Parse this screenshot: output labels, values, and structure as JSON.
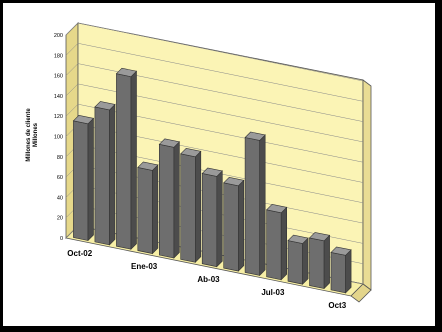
{
  "chart_data": {
    "type": "bar",
    "ylabel_line1": "Millones de cliente",
    "ylabel_line2": "Millones",
    "ylim": [
      0,
      200
    ],
    "yticks": [
      0,
      20,
      40,
      60,
      80,
      100,
      120,
      140,
      160,
      180,
      200
    ],
    "categories": [
      "Oct-02",
      "",
      "",
      "Ene-03",
      "",
      "",
      "Ab-03",
      "",
      "",
      "Jul-03",
      "",
      "",
      "Oct3"
    ],
    "shown_category_labels": [
      "Oct-02",
      "Ene-03",
      "Ab-03",
      "Jul-03",
      "Oct3"
    ],
    "values": [
      115,
      133,
      170,
      82,
      109,
      104,
      89,
      84,
      133,
      66,
      40,
      47,
      37
    ],
    "grid": true,
    "colors": {
      "bar": "#6e6e6e",
      "wall": "#fbf4b5",
      "floor": "#f7efa6",
      "side": "#e6d88a"
    }
  }
}
